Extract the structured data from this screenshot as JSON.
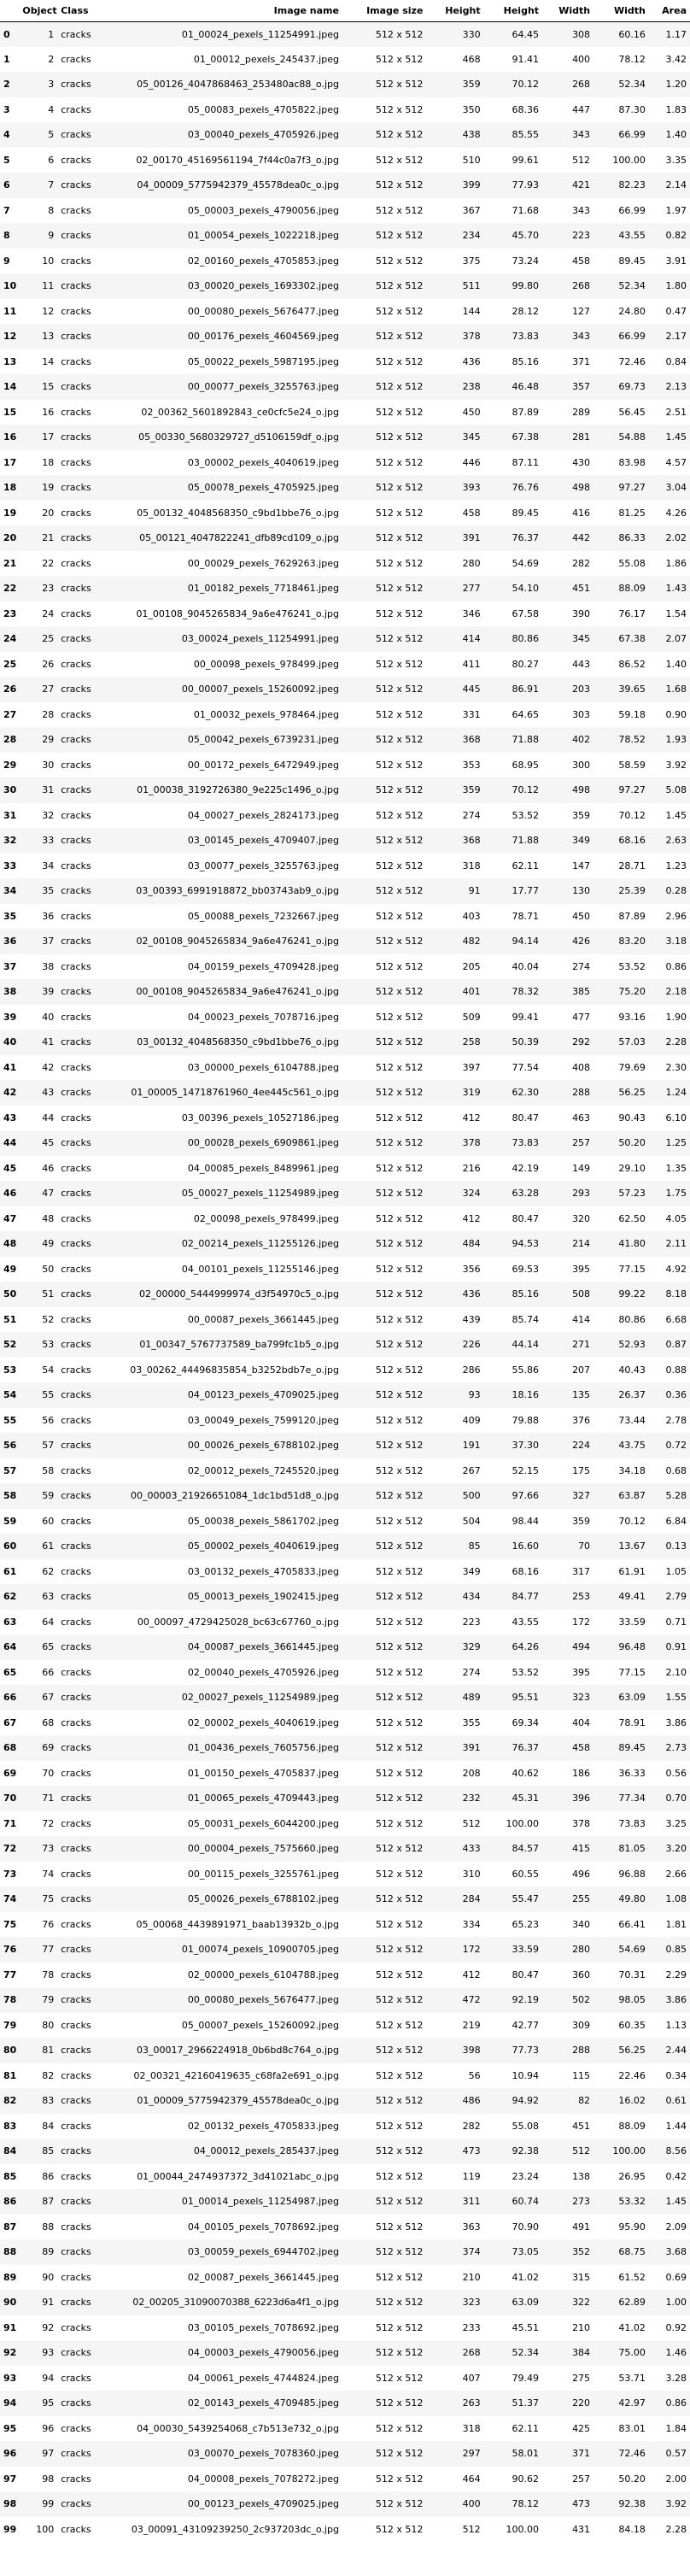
{
  "columns": [
    "",
    "Object ID",
    "Class",
    "Image name",
    "Image size",
    "Height",
    "Height",
    "Width",
    "Width",
    "Area"
  ],
  "rows": [
    [
      "0",
      "1",
      "cracks",
      "01_00024_pexels_11254991.jpeg",
      "512 x 512",
      "330",
      "64.45",
      "308",
      "60.16",
      "1.17"
    ],
    [
      "1",
      "2",
      "cracks",
      "01_00012_pexels_245437.jpeg",
      "512 x 512",
      "468",
      "91.41",
      "400",
      "78.12",
      "3.42"
    ],
    [
      "2",
      "3",
      "cracks",
      "05_00126_4047868463_253480ac88_o.jpg",
      "512 x 512",
      "359",
      "70.12",
      "268",
      "52.34",
      "1.20"
    ],
    [
      "3",
      "4",
      "cracks",
      "05_00083_pexels_4705822.jpeg",
      "512 x 512",
      "350",
      "68.36",
      "447",
      "87.30",
      "1.83"
    ],
    [
      "4",
      "5",
      "cracks",
      "03_00040_pexels_4705926.jpeg",
      "512 x 512",
      "438",
      "85.55",
      "343",
      "66.99",
      "1.40"
    ],
    [
      "5",
      "6",
      "cracks",
      "02_00170_45169561194_7f44c0a7f3_o.jpg",
      "512 x 512",
      "510",
      "99.61",
      "512",
      "100.00",
      "3.35"
    ],
    [
      "6",
      "7",
      "cracks",
      "04_00009_5775942379_45578dea0c_o.jpg",
      "512 x 512",
      "399",
      "77.93",
      "421",
      "82.23",
      "2.14"
    ],
    [
      "7",
      "8",
      "cracks",
      "05_00003_pexels_4790056.jpeg",
      "512 x 512",
      "367",
      "71.68",
      "343",
      "66.99",
      "1.97"
    ],
    [
      "8",
      "9",
      "cracks",
      "01_00054_pexels_1022218.jpeg",
      "512 x 512",
      "234",
      "45.70",
      "223",
      "43.55",
      "0.82"
    ],
    [
      "9",
      "10",
      "cracks",
      "02_00160_pexels_4705853.jpeg",
      "512 x 512",
      "375",
      "73.24",
      "458",
      "89.45",
      "3.91"
    ],
    [
      "10",
      "11",
      "cracks",
      "03_00020_pexels_1693302.jpeg",
      "512 x 512",
      "511",
      "99.80",
      "268",
      "52.34",
      "1.80"
    ],
    [
      "11",
      "12",
      "cracks",
      "00_00080_pexels_5676477.jpeg",
      "512 x 512",
      "144",
      "28.12",
      "127",
      "24.80",
      "0.47"
    ],
    [
      "12",
      "13",
      "cracks",
      "00_00176_pexels_4604569.jpeg",
      "512 x 512",
      "378",
      "73.83",
      "343",
      "66.99",
      "2.17"
    ],
    [
      "13",
      "14",
      "cracks",
      "05_00022_pexels_5987195.jpeg",
      "512 x 512",
      "436",
      "85.16",
      "371",
      "72.46",
      "0.84"
    ],
    [
      "14",
      "15",
      "cracks",
      "00_00077_pexels_3255763.jpeg",
      "512 x 512",
      "238",
      "46.48",
      "357",
      "69.73",
      "2.13"
    ],
    [
      "15",
      "16",
      "cracks",
      "02_00362_5601892843_ce0cfc5e24_o.jpg",
      "512 x 512",
      "450",
      "87.89",
      "289",
      "56.45",
      "2.51"
    ],
    [
      "16",
      "17",
      "cracks",
      "05_00330_5680329727_d5106159df_o.jpg",
      "512 x 512",
      "345",
      "67.38",
      "281",
      "54.88",
      "1.45"
    ],
    [
      "17",
      "18",
      "cracks",
      "03_00002_pexels_4040619.jpeg",
      "512 x 512",
      "446",
      "87.11",
      "430",
      "83.98",
      "4.57"
    ],
    [
      "18",
      "19",
      "cracks",
      "05_00078_pexels_4705925.jpeg",
      "512 x 512",
      "393",
      "76.76",
      "498",
      "97.27",
      "3.04"
    ],
    [
      "19",
      "20",
      "cracks",
      "05_00132_4048568350_c9bd1bbe76_o.jpg",
      "512 x 512",
      "458",
      "89.45",
      "416",
      "81.25",
      "4.26"
    ],
    [
      "20",
      "21",
      "cracks",
      "05_00121_4047822241_dfb89cd109_o.jpg",
      "512 x 512",
      "391",
      "76.37",
      "442",
      "86.33",
      "2.02"
    ],
    [
      "21",
      "22",
      "cracks",
      "00_00029_pexels_7629263.jpeg",
      "512 x 512",
      "280",
      "54.69",
      "282",
      "55.08",
      "1.86"
    ],
    [
      "22",
      "23",
      "cracks",
      "01_00182_pexels_7718461.jpeg",
      "512 x 512",
      "277",
      "54.10",
      "451",
      "88.09",
      "1.43"
    ],
    [
      "23",
      "24",
      "cracks",
      "01_00108_9045265834_9a6e476241_o.jpg",
      "512 x 512",
      "346",
      "67.58",
      "390",
      "76.17",
      "1.54"
    ],
    [
      "24",
      "25",
      "cracks",
      "03_00024_pexels_11254991.jpeg",
      "512 x 512",
      "414",
      "80.86",
      "345",
      "67.38",
      "2.07"
    ],
    [
      "25",
      "26",
      "cracks",
      "00_00098_pexels_978499.jpeg",
      "512 x 512",
      "411",
      "80.27",
      "443",
      "86.52",
      "1.40"
    ],
    [
      "26",
      "27",
      "cracks",
      "00_00007_pexels_15260092.jpeg",
      "512 x 512",
      "445",
      "86.91",
      "203",
      "39.65",
      "1.68"
    ],
    [
      "27",
      "28",
      "cracks",
      "01_00032_pexels_978464.jpeg",
      "512 x 512",
      "331",
      "64.65",
      "303",
      "59.18",
      "0.90"
    ],
    [
      "28",
      "29",
      "cracks",
      "05_00042_pexels_6739231.jpeg",
      "512 x 512",
      "368",
      "71.88",
      "402",
      "78.52",
      "1.93"
    ],
    [
      "29",
      "30",
      "cracks",
      "00_00172_pexels_6472949.jpeg",
      "512 x 512",
      "353",
      "68.95",
      "300",
      "58.59",
      "3.92"
    ],
    [
      "30",
      "31",
      "cracks",
      "01_00038_3192726380_9e225c1496_o.jpg",
      "512 x 512",
      "359",
      "70.12",
      "498",
      "97.27",
      "5.08"
    ],
    [
      "31",
      "32",
      "cracks",
      "04_00027_pexels_2824173.jpeg",
      "512 x 512",
      "274",
      "53.52",
      "359",
      "70.12",
      "1.45"
    ],
    [
      "32",
      "33",
      "cracks",
      "03_00145_pexels_4709407.jpeg",
      "512 x 512",
      "368",
      "71.88",
      "349",
      "68.16",
      "2.63"
    ],
    [
      "33",
      "34",
      "cracks",
      "03_00077_pexels_3255763.jpeg",
      "512 x 512",
      "318",
      "62.11",
      "147",
      "28.71",
      "1.23"
    ],
    [
      "34",
      "35",
      "cracks",
      "03_00393_6991918872_bb03743ab9_o.jpg",
      "512 x 512",
      "91",
      "17.77",
      "130",
      "25.39",
      "0.28"
    ],
    [
      "35",
      "36",
      "cracks",
      "05_00088_pexels_7232667.jpeg",
      "512 x 512",
      "403",
      "78.71",
      "450",
      "87.89",
      "2.96"
    ],
    [
      "36",
      "37",
      "cracks",
      "02_00108_9045265834_9a6e476241_o.jpg",
      "512 x 512",
      "482",
      "94.14",
      "426",
      "83.20",
      "3.18"
    ],
    [
      "37",
      "38",
      "cracks",
      "04_00159_pexels_4709428.jpeg",
      "512 x 512",
      "205",
      "40.04",
      "274",
      "53.52",
      "0.86"
    ],
    [
      "38",
      "39",
      "cracks",
      "00_00108_9045265834_9a6e476241_o.jpg",
      "512 x 512",
      "401",
      "78.32",
      "385",
      "75.20",
      "2.18"
    ],
    [
      "39",
      "40",
      "cracks",
      "04_00023_pexels_7078716.jpeg",
      "512 x 512",
      "509",
      "99.41",
      "477",
      "93.16",
      "1.90"
    ],
    [
      "40",
      "41",
      "cracks",
      "03_00132_4048568350_c9bd1bbe76_o.jpg",
      "512 x 512",
      "258",
      "50.39",
      "292",
      "57.03",
      "2.28"
    ],
    [
      "41",
      "42",
      "cracks",
      "03_00000_pexels_6104788.jpeg",
      "512 x 512",
      "397",
      "77.54",
      "408",
      "79.69",
      "2.30"
    ],
    [
      "42",
      "43",
      "cracks",
      "01_00005_14718761960_4ee445c561_o.jpg",
      "512 x 512",
      "319",
      "62.30",
      "288",
      "56.25",
      "1.24"
    ],
    [
      "43",
      "44",
      "cracks",
      "03_00396_pexels_10527186.jpeg",
      "512 x 512",
      "412",
      "80.47",
      "463",
      "90.43",
      "6.10"
    ],
    [
      "44",
      "45",
      "cracks",
      "00_00028_pexels_6909861.jpeg",
      "512 x 512",
      "378",
      "73.83",
      "257",
      "50.20",
      "1.25"
    ],
    [
      "45",
      "46",
      "cracks",
      "04_00085_pexels_8489961.jpeg",
      "512 x 512",
      "216",
      "42.19",
      "149",
      "29.10",
      "1.35"
    ],
    [
      "46",
      "47",
      "cracks",
      "05_00027_pexels_11254989.jpeg",
      "512 x 512",
      "324",
      "63.28",
      "293",
      "57.23",
      "1.75"
    ],
    [
      "47",
      "48",
      "cracks",
      "02_00098_pexels_978499.jpeg",
      "512 x 512",
      "412",
      "80.47",
      "320",
      "62.50",
      "4.05"
    ],
    [
      "48",
      "49",
      "cracks",
      "02_00214_pexels_11255126.jpeg",
      "512 x 512",
      "484",
      "94.53",
      "214",
      "41.80",
      "2.11"
    ],
    [
      "49",
      "50",
      "cracks",
      "04_00101_pexels_11255146.jpeg",
      "512 x 512",
      "356",
      "69.53",
      "395",
      "77.15",
      "4.92"
    ],
    [
      "50",
      "51",
      "cracks",
      "02_00000_5444999974_d3f54970c5_o.jpg",
      "512 x 512",
      "436",
      "85.16",
      "508",
      "99.22",
      "8.18"
    ],
    [
      "51",
      "52",
      "cracks",
      "00_00087_pexels_3661445.jpeg",
      "512 x 512",
      "439",
      "85.74",
      "414",
      "80.86",
      "6.68"
    ],
    [
      "52",
      "53",
      "cracks",
      "01_00347_5767737589_ba799fc1b5_o.jpg",
      "512 x 512",
      "226",
      "44.14",
      "271",
      "52.93",
      "0.87"
    ],
    [
      "53",
      "54",
      "cracks",
      "03_00262_44496835854_b3252bdb7e_o.jpg",
      "512 x 512",
      "286",
      "55.86",
      "207",
      "40.43",
      "0.88"
    ],
    [
      "54",
      "55",
      "cracks",
      "04_00123_pexels_4709025.jpeg",
      "512 x 512",
      "93",
      "18.16",
      "135",
      "26.37",
      "0.36"
    ],
    [
      "55",
      "56",
      "cracks",
      "03_00049_pexels_7599120.jpeg",
      "512 x 512",
      "409",
      "79.88",
      "376",
      "73.44",
      "2.78"
    ],
    [
      "56",
      "57",
      "cracks",
      "00_00026_pexels_6788102.jpeg",
      "512 x 512",
      "191",
      "37.30",
      "224",
      "43.75",
      "0.72"
    ],
    [
      "57",
      "58",
      "cracks",
      "02_00012_pexels_7245520.jpeg",
      "512 x 512",
      "267",
      "52.15",
      "175",
      "34.18",
      "0.68"
    ],
    [
      "58",
      "59",
      "cracks",
      "00_00003_21926651084_1dc1bd51d8_o.jpg",
      "512 x 512",
      "500",
      "97.66",
      "327",
      "63.87",
      "5.28"
    ],
    [
      "59",
      "60",
      "cracks",
      "05_00038_pexels_5861702.jpeg",
      "512 x 512",
      "504",
      "98.44",
      "359",
      "70.12",
      "6.84"
    ],
    [
      "60",
      "61",
      "cracks",
      "05_00002_pexels_4040619.jpeg",
      "512 x 512",
      "85",
      "16.60",
      "70",
      "13.67",
      "0.13"
    ],
    [
      "61",
      "62",
      "cracks",
      "03_00132_pexels_4705833.jpeg",
      "512 x 512",
      "349",
      "68.16",
      "317",
      "61.91",
      "1.05"
    ],
    [
      "62",
      "63",
      "cracks",
      "05_00013_pexels_1902415.jpeg",
      "512 x 512",
      "434",
      "84.77",
      "253",
      "49.41",
      "2.79"
    ],
    [
      "63",
      "64",
      "cracks",
      "00_00097_4729425028_bc63c67760_o.jpg",
      "512 x 512",
      "223",
      "43.55",
      "172",
      "33.59",
      "0.71"
    ],
    [
      "64",
      "65",
      "cracks",
      "04_00087_pexels_3661445.jpeg",
      "512 x 512",
      "329",
      "64.26",
      "494",
      "96.48",
      "0.91"
    ],
    [
      "65",
      "66",
      "cracks",
      "02_00040_pexels_4705926.jpeg",
      "512 x 512",
      "274",
      "53.52",
      "395",
      "77.15",
      "2.10"
    ],
    [
      "66",
      "67",
      "cracks",
      "02_00027_pexels_11254989.jpeg",
      "512 x 512",
      "489",
      "95.51",
      "323",
      "63.09",
      "1.55"
    ],
    [
      "67",
      "68",
      "cracks",
      "02_00002_pexels_4040619.jpeg",
      "512 x 512",
      "355",
      "69.34",
      "404",
      "78.91",
      "3.86"
    ],
    [
      "68",
      "69",
      "cracks",
      "01_00436_pexels_7605756.jpeg",
      "512 x 512",
      "391",
      "76.37",
      "458",
      "89.45",
      "2.73"
    ],
    [
      "69",
      "70",
      "cracks",
      "01_00150_pexels_4705837.jpeg",
      "512 x 512",
      "208",
      "40.62",
      "186",
      "36.33",
      "0.56"
    ],
    [
      "70",
      "71",
      "cracks",
      "01_00065_pexels_4709443.jpeg",
      "512 x 512",
      "232",
      "45.31",
      "396",
      "77.34",
      "0.70"
    ],
    [
      "71",
      "72",
      "cracks",
      "05_00031_pexels_6044200.jpeg",
      "512 x 512",
      "512",
      "100.00",
      "378",
      "73.83",
      "3.25"
    ],
    [
      "72",
      "73",
      "cracks",
      "00_00004_pexels_7575660.jpeg",
      "512 x 512",
      "433",
      "84.57",
      "415",
      "81.05",
      "3.20"
    ],
    [
      "73",
      "74",
      "cracks",
      "00_00115_pexels_3255761.jpeg",
      "512 x 512",
      "310",
      "60.55",
      "496",
      "96.88",
      "2.66"
    ],
    [
      "74",
      "75",
      "cracks",
      "05_00026_pexels_6788102.jpeg",
      "512 x 512",
      "284",
      "55.47",
      "255",
      "49.80",
      "1.08"
    ],
    [
      "75",
      "76",
      "cracks",
      "05_00068_4439891971_baab13932b_o.jpg",
      "512 x 512",
      "334",
      "65.23",
      "340",
      "66.41",
      "1.81"
    ],
    [
      "76",
      "77",
      "cracks",
      "01_00074_pexels_10900705.jpeg",
      "512 x 512",
      "172",
      "33.59",
      "280",
      "54.69",
      "0.85"
    ],
    [
      "77",
      "78",
      "cracks",
      "02_00000_pexels_6104788.jpeg",
      "512 x 512",
      "412",
      "80.47",
      "360",
      "70.31",
      "2.29"
    ],
    [
      "78",
      "79",
      "cracks",
      "00_00080_pexels_5676477.jpeg",
      "512 x 512",
      "472",
      "92.19",
      "502",
      "98.05",
      "3.86"
    ],
    [
      "79",
      "80",
      "cracks",
      "05_00007_pexels_15260092.jpeg",
      "512 x 512",
      "219",
      "42.77",
      "309",
      "60.35",
      "1.13"
    ],
    [
      "80",
      "81",
      "cracks",
      "03_00017_2966224918_0b6bd8c764_o.jpg",
      "512 x 512",
      "398",
      "77.73",
      "288",
      "56.25",
      "2.44"
    ],
    [
      "81",
      "82",
      "cracks",
      "02_00321_42160419635_c68fa2e691_o.jpg",
      "512 x 512",
      "56",
      "10.94",
      "115",
      "22.46",
      "0.34"
    ],
    [
      "82",
      "83",
      "cracks",
      "01_00009_5775942379_45578dea0c_o.jpg",
      "512 x 512",
      "486",
      "94.92",
      "82",
      "16.02",
      "0.61"
    ],
    [
      "83",
      "84",
      "cracks",
      "02_00132_pexels_4705833.jpeg",
      "512 x 512",
      "282",
      "55.08",
      "451",
      "88.09",
      "1.44"
    ],
    [
      "84",
      "85",
      "cracks",
      "04_00012_pexels_285437.jpeg",
      "512 x 512",
      "473",
      "92.38",
      "512",
      "100.00",
      "8.56"
    ],
    [
      "85",
      "86",
      "cracks",
      "01_00044_2474937372_3d41021abc_o.jpg",
      "512 x 512",
      "119",
      "23.24",
      "138",
      "26.95",
      "0.42"
    ],
    [
      "86",
      "87",
      "cracks",
      "01_00014_pexels_11254987.jpeg",
      "512 x 512",
      "311",
      "60.74",
      "273",
      "53.32",
      "1.45"
    ],
    [
      "87",
      "88",
      "cracks",
      "04_00105_pexels_7078692.jpeg",
      "512 x 512",
      "363",
      "70.90",
      "491",
      "95.90",
      "2.09"
    ],
    [
      "88",
      "89",
      "cracks",
      "03_00059_pexels_6944702.jpeg",
      "512 x 512",
      "374",
      "73.05",
      "352",
      "68.75",
      "3.68"
    ],
    [
      "89",
      "90",
      "cracks",
      "02_00087_pexels_3661445.jpeg",
      "512 x 512",
      "210",
      "41.02",
      "315",
      "61.52",
      "0.69"
    ],
    [
      "90",
      "91",
      "cracks",
      "02_00205_31090070388_6223d6a4f1_o.jpg",
      "512 x 512",
      "323",
      "63.09",
      "322",
      "62.89",
      "1.00"
    ],
    [
      "91",
      "92",
      "cracks",
      "03_00105_pexels_7078692.jpeg",
      "512 x 512",
      "233",
      "45.51",
      "210",
      "41.02",
      "0.92"
    ],
    [
      "92",
      "93",
      "cracks",
      "04_00003_pexels_4790056.jpeg",
      "512 x 512",
      "268",
      "52.34",
      "384",
      "75.00",
      "1.46"
    ],
    [
      "93",
      "94",
      "cracks",
      "04_00061_pexels_4744824.jpeg",
      "512 x 512",
      "407",
      "79.49",
      "275",
      "53.71",
      "3.28"
    ],
    [
      "94",
      "95",
      "cracks",
      "02_00143_pexels_4709485.jpeg",
      "512 x 512",
      "263",
      "51.37",
      "220",
      "42.97",
      "0.86"
    ],
    [
      "95",
      "96",
      "cracks",
      "04_00030_5439254068_c7b513e732_o.jpg",
      "512 x 512",
      "318",
      "62.11",
      "425",
      "83.01",
      "1.84"
    ],
    [
      "96",
      "97",
      "cracks",
      "03_00070_pexels_7078360.jpeg",
      "512 x 512",
      "297",
      "58.01",
      "371",
      "72.46",
      "0.57"
    ],
    [
      "97",
      "98",
      "cracks",
      "04_00008_pexels_7078272.jpeg",
      "512 x 512",
      "464",
      "90.62",
      "257",
      "50.20",
      "2.00"
    ],
    [
      "98",
      "99",
      "cracks",
      "00_00123_pexels_4709025.jpeg",
      "512 x 512",
      "400",
      "78.12",
      "473",
      "92.38",
      "3.92"
    ],
    [
      "99",
      "100",
      "cracks",
      "03_00091_43109239250_2c937203dc_o.jpg",
      "512 x 512",
      "512",
      "100.00",
      "431",
      "84.18",
      "2.28"
    ]
  ]
}
